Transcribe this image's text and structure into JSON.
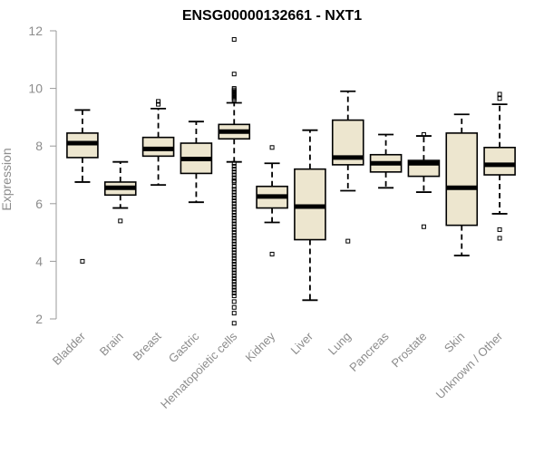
{
  "chart_data": {
    "type": "box",
    "title": "ENSG00000132661 - NXT1",
    "xlabel": "",
    "ylabel": "Expression",
    "ylim": [
      2,
      12
    ],
    "yticks": [
      2,
      4,
      6,
      8,
      10,
      12
    ],
    "grid": false,
    "colors": {
      "box_fill": "#ede6cf",
      "stroke": "#000000",
      "axis": "#9a9a9a",
      "tick_text": "#8c8c8c"
    },
    "categories": [
      "Bladder",
      "Brain",
      "Breast",
      "Gastric",
      "Hematopoietic cells",
      "Kidney",
      "Liver",
      "Lung",
      "Pancreas",
      "Prostate",
      "Skin",
      "Unknown / Other"
    ],
    "boxes": [
      {
        "q1": 7.6,
        "median": 8.1,
        "q3": 8.45,
        "whisker_low": 6.75,
        "whisker_high": 9.25,
        "outliers": [
          4.0
        ]
      },
      {
        "q1": 6.3,
        "median": 6.55,
        "q3": 6.75,
        "whisker_low": 5.85,
        "whisker_high": 7.45,
        "outliers": [
          5.4
        ]
      },
      {
        "q1": 7.65,
        "median": 7.9,
        "q3": 8.3,
        "whisker_low": 6.65,
        "whisker_high": 9.3,
        "outliers": [
          9.45,
          9.55
        ]
      },
      {
        "q1": 7.05,
        "median": 7.55,
        "q3": 8.1,
        "whisker_low": 6.05,
        "whisker_high": 8.85,
        "outliers": []
      },
      {
        "q1": 8.25,
        "median": 8.5,
        "q3": 8.75,
        "whisker_low": 7.45,
        "whisker_high": 9.5,
        "outliers": [
          11.7,
          10.5,
          10.0,
          9.95,
          9.9,
          9.85,
          9.8,
          9.75,
          9.7,
          9.65,
          9.6,
          7.4,
          7.3,
          7.2,
          7.1,
          7.0,
          6.9,
          6.8,
          6.75,
          6.6,
          6.5,
          6.4,
          6.3,
          6.2,
          6.1,
          6.0,
          5.9,
          5.8,
          5.7,
          5.6,
          5.5,
          5.4,
          5.3,
          5.2,
          5.1,
          5.0,
          4.9,
          4.8,
          4.7,
          4.6,
          4.5,
          4.4,
          4.3,
          4.2,
          4.1,
          4.0,
          3.9,
          3.8,
          3.7,
          3.6,
          3.5,
          3.4,
          3.3,
          3.2,
          3.1,
          3.0,
          2.9,
          2.8,
          2.6,
          2.4,
          2.2,
          1.85
        ]
      },
      {
        "q1": 5.85,
        "median": 6.25,
        "q3": 6.6,
        "whisker_low": 5.35,
        "whisker_high": 7.4,
        "outliers": [
          7.95,
          4.25
        ]
      },
      {
        "q1": 4.75,
        "median": 5.9,
        "q3": 7.2,
        "whisker_low": 2.65,
        "whisker_high": 8.55,
        "outliers": []
      },
      {
        "q1": 7.35,
        "median": 7.6,
        "q3": 8.9,
        "whisker_low": 6.45,
        "whisker_high": 9.9,
        "outliers": [
          4.7
        ]
      },
      {
        "q1": 7.1,
        "median": 7.4,
        "q3": 7.7,
        "whisker_low": 6.55,
        "whisker_high": 8.4,
        "outliers": []
      },
      {
        "q1": 6.95,
        "median": 7.4,
        "q3": 7.5,
        "whisker_low": 6.4,
        "whisker_high": 8.35,
        "outliers": [
          8.4,
          5.2
        ]
      },
      {
        "q1": 5.25,
        "median": 6.55,
        "q3": 8.45,
        "whisker_low": 4.2,
        "whisker_high": 9.1,
        "outliers": []
      },
      {
        "q1": 7.0,
        "median": 7.35,
        "q3": 7.95,
        "whisker_low": 5.65,
        "whisker_high": 9.45,
        "outliers": [
          9.8,
          9.65,
          5.1,
          4.8
        ]
      }
    ]
  }
}
